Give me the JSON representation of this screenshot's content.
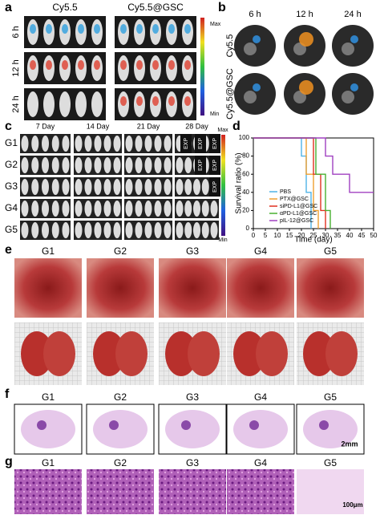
{
  "panel_labels": [
    "a",
    "b",
    "c",
    "d",
    "e",
    "f",
    "g"
  ],
  "a": {
    "columns": [
      "Cy5.5",
      "Cy5.5@GSC"
    ],
    "rows": [
      "6 h",
      "12 h",
      "24 h"
    ],
    "scale": [
      "Max",
      "Min"
    ]
  },
  "b": {
    "columns": [
      "6 h",
      "12 h",
      "24 h"
    ],
    "rows": [
      "Cy5.5",
      "Cy5.5@GSC"
    ]
  },
  "c": {
    "columns": [
      "7 Day",
      "14 Day",
      "21 Day",
      "28 Day"
    ],
    "rows": [
      "G1",
      "G2",
      "G3",
      "G4",
      "G5"
    ],
    "exp_labels": [
      [
        "EXP",
        "EXP",
        "EXP"
      ],
      [
        "EXP",
        "EXP"
      ],
      [
        "EXP"
      ]
    ],
    "scale": [
      "Max",
      "Min"
    ]
  },
  "e": {
    "columns": [
      "G1",
      "G2",
      "G3",
      "G4",
      "G5"
    ]
  },
  "f": {
    "columns": [
      "G1",
      "G2",
      "G3",
      "G4",
      "G5"
    ],
    "scale_bar": "2mm"
  },
  "g": {
    "columns": [
      "G1",
      "G2",
      "G3",
      "G4",
      "G5"
    ],
    "scale_bar": "100μm"
  },
  "chart_data": {
    "type": "line",
    "xlabel": "Time (day)",
    "ylabel": "Survival ratio (%)",
    "xlim": [
      0,
      50
    ],
    "ylim": [
      0,
      100
    ],
    "xticks": [
      0,
      5,
      10,
      15,
      20,
      25,
      30,
      35,
      40,
      45,
      50
    ],
    "yticks": [
      0,
      20,
      40,
      60,
      80,
      100
    ],
    "legend": "lower left",
    "series": [
      {
        "name": "PBS",
        "color": "#4fb3e6",
        "x": [
          0,
          20,
          20,
          22,
          22,
          24,
          24
        ],
        "values": [
          100,
          100,
          80,
          80,
          40,
          40,
          0
        ]
      },
      {
        "name": "PTX@GSC",
        "color": "#f0a030",
        "x": [
          0,
          22,
          22,
          25,
          25,
          27,
          27
        ],
        "values": [
          100,
          100,
          60,
          60,
          20,
          20,
          0
        ]
      },
      {
        "name": "siPD-L1@GSC",
        "color": "#e03020",
        "x": [
          0,
          25,
          25,
          28,
          28,
          30,
          30
        ],
        "values": [
          100,
          100,
          60,
          60,
          20,
          20,
          0
        ]
      },
      {
        "name": "αPD-L1@GSC",
        "color": "#48b030",
        "x": [
          0,
          26,
          26,
          30,
          30,
          32,
          32
        ],
        "values": [
          100,
          100,
          60,
          60,
          20,
          20,
          0
        ]
      },
      {
        "name": "pIL-12@GSC",
        "color": "#a040c0",
        "x": [
          0,
          30,
          30,
          33,
          33,
          40,
          40,
          50
        ],
        "values": [
          100,
          100,
          80,
          80,
          60,
          60,
          40,
          40
        ]
      }
    ]
  }
}
